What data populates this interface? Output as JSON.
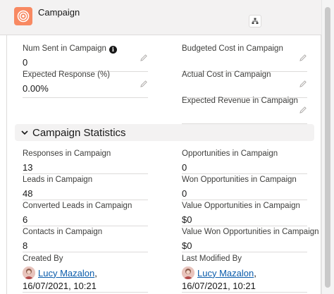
{
  "header": {
    "title": "Campaign",
    "icon": "campaign-target-icon",
    "accent_color": "#f88962"
  },
  "fields_top_left": [
    {
      "label": "Num Sent in Campaign",
      "value": "0",
      "has_info": true
    },
    {
      "label": "Expected Response (%)",
      "value": "0.00%"
    }
  ],
  "fields_top_right": [
    {
      "label": "Budgeted Cost in Campaign",
      "value": ""
    },
    {
      "label": "Actual Cost in Campaign",
      "value": ""
    },
    {
      "label": "Expected Revenue in Campaign",
      "value": ""
    }
  ],
  "section": {
    "title": "Campaign Statistics",
    "left": [
      {
        "label": "Responses in Campaign",
        "value": "13"
      },
      {
        "label": "Leads in Campaign",
        "value": "48"
      },
      {
        "label": "Converted Leads in Campaign",
        "value": "6"
      },
      {
        "label": "Contacts in Campaign",
        "value": "8"
      }
    ],
    "right": [
      {
        "label": "Opportunities in Campaign",
        "value": "0"
      },
      {
        "label": "Won Opportunities in Campaign",
        "value": "0"
      },
      {
        "label": "Value Opportunities in Campaign",
        "value": "$0"
      },
      {
        "label": "Value Won Opportunities in Campaign",
        "value": "$0"
      }
    ]
  },
  "audit": {
    "created": {
      "label": "Created By",
      "user": "Lucy Mazalon",
      "comma": ",",
      "date": "16/07/2021, 10:21"
    },
    "modified": {
      "label": "Last Modified By",
      "user": "Lucy Mazalon",
      "comma": ",",
      "date": "16/07/2021, 10:21"
    }
  },
  "link_color": "#0b5cab"
}
